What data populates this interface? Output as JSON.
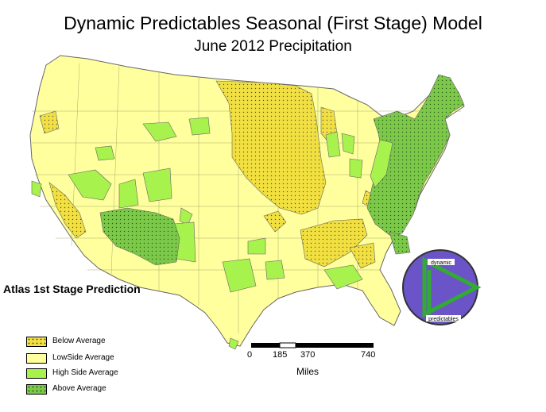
{
  "title": "Dynamic Predictables Seasonal (First Stage) Model",
  "subtitle": "June 2012 Precipitation",
  "side_label": "Atlas 1st Stage Prediction",
  "colors": {
    "below": "#f2e040",
    "lowside": "#ffff9e",
    "highside": "#a8f24d",
    "above": "#7cc94a",
    "border": "#666666",
    "logo_bg": "#6a54c8",
    "logo_fg": "#33aa33"
  },
  "legend": [
    {
      "label": "Below Average",
      "class": "below"
    },
    {
      "label": "LowSide Average",
      "class": "lowside"
    },
    {
      "label": "High Side Average",
      "class": "highside"
    },
    {
      "label": "Above Average",
      "class": "above"
    }
  ],
  "scale": {
    "ticks": [
      "0",
      "185",
      "370",
      "740"
    ],
    "unit": "Miles"
  },
  "logo": {
    "top_text": "dynamic",
    "bottom_text": "predictables",
    "icon": "play-triangle-icon"
  }
}
